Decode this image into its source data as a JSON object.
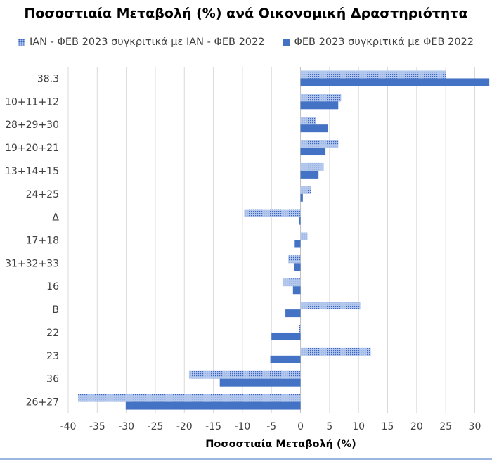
{
  "chart_data": {
    "type": "bar",
    "orientation": "horizontal",
    "title": "Ποσοστιαία Μεταβολή (%) ανά Οικονομική Δραστηριότητα",
    "xlabel": "Ποσοστιαία Μεταβολή (%)",
    "ylabel": "",
    "xlim": [
      -40,
      32
    ],
    "xticks": [
      -40,
      -35,
      -30,
      -25,
      -20,
      -15,
      -10,
      -5,
      0,
      5,
      10,
      15,
      20,
      25,
      30
    ],
    "grid": "vertical",
    "legend_position": "top",
    "categories": [
      "38.3",
      "10+11+12",
      "28+29+30",
      "19+20+21",
      "13+14+15",
      "24+25",
      "Δ",
      "17+18",
      "31+32+33",
      "16",
      "Β",
      "22",
      "23",
      "36",
      "26+27"
    ],
    "series": [
      {
        "name": "ΙΑΝ - ΦΕΒ 2023 συγκριτικά με ΙΑΝ - ΦΕΒ 2022",
        "color": "#a9c0e8",
        "pattern": "dotted",
        "values": [
          25.0,
          7.0,
          2.7,
          6.5,
          4.0,
          1.8,
          -9.7,
          1.2,
          -2.1,
          -3.1,
          10.3,
          -0.3,
          12.1,
          -19.2,
          -38.3
        ]
      },
      {
        "name": "ΦΕΒ 2023 συγκριτικά με ΦΕΒ 2022",
        "color": "#4472c4",
        "pattern": "solid",
        "values": [
          32.5,
          6.5,
          4.7,
          4.3,
          3.1,
          0.4,
          -0.2,
          -1.0,
          -1.1,
          -1.3,
          -2.6,
          -5.0,
          -5.2,
          -13.9,
          -30.1
        ]
      }
    ]
  }
}
